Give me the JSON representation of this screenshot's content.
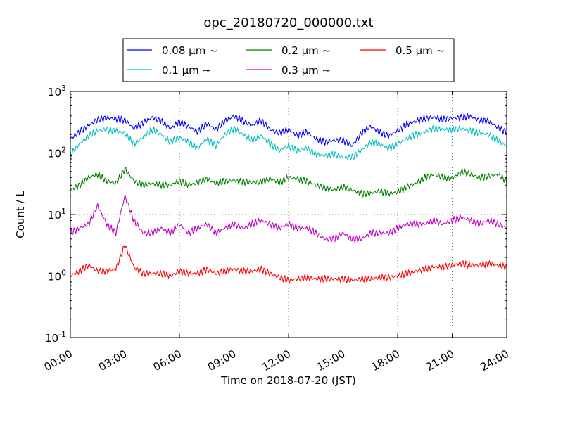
{
  "chart_data": {
    "type": "line",
    "title": "opc_20180720_000000.txt",
    "xlabel": "Time on 2018-07-20 (JST)",
    "ylabel": "Count / L",
    "yscale": "log",
    "ylim": [
      0.1,
      1000
    ],
    "yticks": [
      {
        "value": 0.1,
        "base": "10",
        "exp": "-1"
      },
      {
        "value": 1,
        "base": "10",
        "exp": "0"
      },
      {
        "value": 10,
        "base": "10",
        "exp": "1"
      },
      {
        "value": 100,
        "base": "10",
        "exp": "2"
      },
      {
        "value": 1000,
        "base": "10",
        "exp": "3"
      }
    ],
    "xlim": [
      "00:00",
      "24:00"
    ],
    "xticks": [
      "00:00",
      "03:00",
      "06:00",
      "09:00",
      "12:00",
      "15:00",
      "18:00",
      "21:00",
      "24:00"
    ],
    "grid": true,
    "legend_position": "top",
    "x": [
      "00:00",
      "00:30",
      "01:00",
      "01:30",
      "02:00",
      "02:30",
      "03:00",
      "03:30",
      "04:00",
      "04:30",
      "05:00",
      "05:30",
      "06:00",
      "06:30",
      "07:00",
      "07:30",
      "08:00",
      "08:30",
      "09:00",
      "09:30",
      "10:00",
      "10:30",
      "11:00",
      "11:30",
      "12:00",
      "12:30",
      "13:00",
      "13:30",
      "14:00",
      "14:30",
      "15:00",
      "15:30",
      "16:00",
      "16:30",
      "17:00",
      "17:30",
      "18:00",
      "18:30",
      "19:00",
      "19:30",
      "20:00",
      "20:30",
      "21:00",
      "21:30",
      "22:00",
      "22:30",
      "23:00",
      "23:30",
      "24:00"
    ],
    "series": [
      {
        "name": "0.08 μm ~",
        "color": "#0000ff",
        "values": [
          170,
          220,
          280,
          350,
          370,
          360,
          340,
          250,
          310,
          380,
          330,
          250,
          320,
          270,
          220,
          300,
          240,
          330,
          400,
          330,
          280,
          340,
          240,
          210,
          240,
          190,
          220,
          170,
          150,
          160,
          160,
          130,
          210,
          270,
          220,
          190,
          230,
          290,
          330,
          360,
          380,
          350,
          370,
          380,
          390,
          340,
          330,
          260,
          220
        ]
      },
      {
        "name": "0.1 μm ~",
        "color": "#00bfbf",
        "values": [
          95,
          140,
          190,
          230,
          240,
          230,
          210,
          140,
          180,
          240,
          200,
          150,
          180,
          150,
          120,
          170,
          130,
          200,
          250,
          200,
          160,
          190,
          140,
          110,
          130,
          110,
          120,
          95,
          90,
          95,
          85,
          85,
          110,
          150,
          140,
          120,
          140,
          170,
          200,
          220,
          250,
          240,
          240,
          250,
          230,
          210,
          200,
          160,
          130
        ]
      },
      {
        "name": "0.2 μm ~",
        "color": "#008000",
        "values": [
          25,
          30,
          40,
          45,
          35,
          32,
          55,
          35,
          30,
          32,
          30,
          30,
          35,
          30,
          33,
          38,
          32,
          35,
          36,
          34,
          33,
          34,
          38,
          33,
          40,
          38,
          35,
          30,
          27,
          25,
          28,
          25,
          22,
          22,
          24,
          22,
          23,
          28,
          32,
          40,
          45,
          40,
          38,
          50,
          45,
          40,
          42,
          45,
          35
        ]
      },
      {
        "name": "0.3 μm ~",
        "color": "#bf00bf",
        "values": [
          5,
          6,
          7,
          14,
          7,
          5,
          20,
          8,
          5,
          5,
          6,
          5,
          7,
          5,
          6,
          7,
          5,
          6,
          7,
          6,
          7,
          8,
          7,
          6,
          7,
          6,
          6,
          5,
          4,
          4,
          5,
          4,
          4,
          5,
          5,
          5,
          6,
          7,
          7,
          7,
          8,
          7,
          8,
          9,
          8,
          7,
          8,
          7,
          6
        ]
      },
      {
        "name": "0.5 μm ~",
        "color": "#ff0000",
        "values": [
          1,
          1.2,
          1.5,
          1.2,
          1.2,
          1.3,
          3.2,
          1.4,
          1.1,
          1.1,
          1.1,
          1,
          1.2,
          1.1,
          1.1,
          1.3,
          1.1,
          1.2,
          1.3,
          1.2,
          1.2,
          1.3,
          1.1,
          0.95,
          0.85,
          0.9,
          0.95,
          0.9,
          0.9,
          0.9,
          0.9,
          0.85,
          0.9,
          0.9,
          0.95,
          0.95,
          1,
          1.1,
          1.2,
          1.3,
          1.4,
          1.4,
          1.5,
          1.6,
          1.5,
          1.5,
          1.6,
          1.5,
          1.4
        ]
      }
    ]
  }
}
